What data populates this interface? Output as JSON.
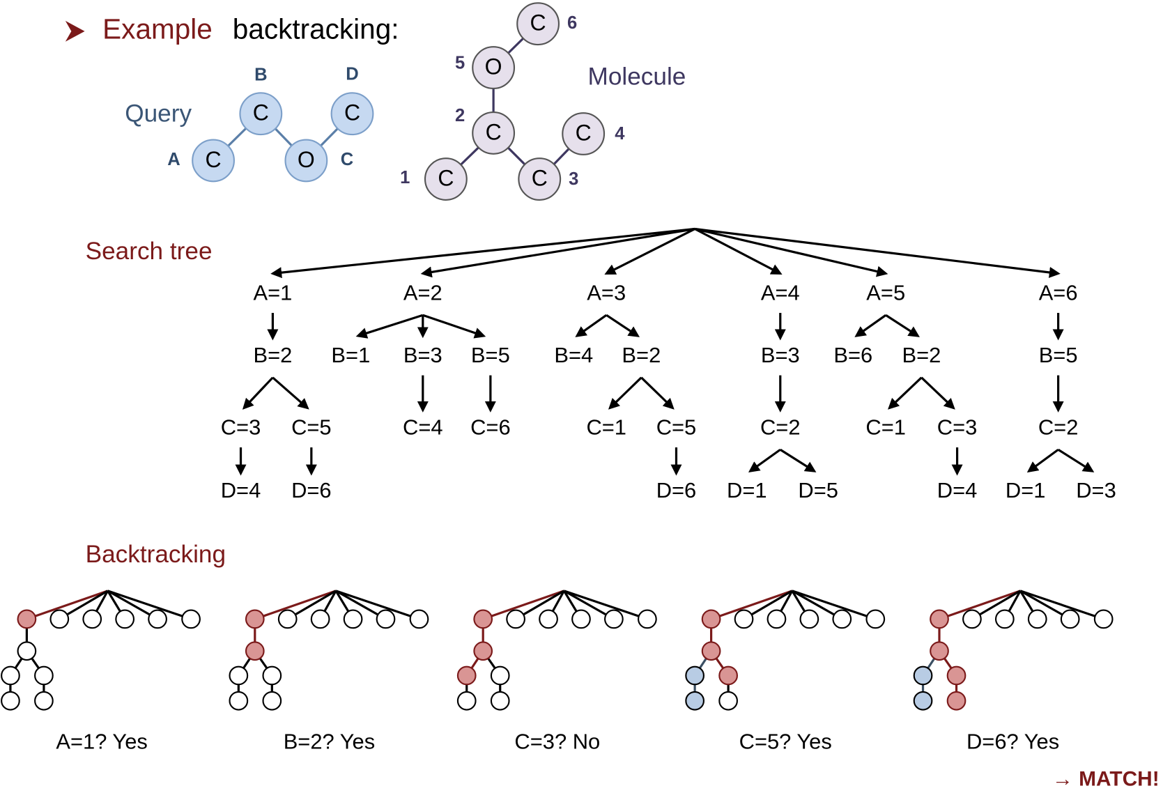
{
  "title": {
    "highlight": "Example",
    "rest": "backtracking:"
  },
  "query": {
    "label": "Query",
    "nodes": [
      {
        "id": "A",
        "atom": "C"
      },
      {
        "id": "B",
        "atom": "C"
      },
      {
        "id": "C",
        "atom": "O"
      },
      {
        "id": "D",
        "atom": "C"
      }
    ]
  },
  "molecule": {
    "label": "Molecule",
    "nodes": [
      {
        "id": "1",
        "atom": "C"
      },
      {
        "id": "2",
        "atom": "C"
      },
      {
        "id": "3",
        "atom": "C"
      },
      {
        "id": "4",
        "atom": "C"
      },
      {
        "id": "5",
        "atom": "O"
      },
      {
        "id": "6",
        "atom": "C"
      }
    ]
  },
  "search_tree": {
    "label": "Search tree",
    "levels": [
      [
        "A=1",
        "A=2",
        "A=3",
        "A=4",
        "A=5",
        "A=6"
      ],
      [
        "B=2",
        "B=1",
        "B=3",
        "B=5",
        "B=4",
        "B=2",
        "B=3",
        "B=6",
        "B=2",
        "B=5"
      ],
      [
        "C=3",
        "C=5",
        "C=4",
        "C=6",
        "C=1",
        "C=5",
        "C=2",
        "C=1",
        "C=3",
        "C=2"
      ],
      [
        "D=4",
        "D=6",
        "D=6",
        "D=1",
        "D=5",
        "D=4",
        "D=1",
        "D=3"
      ]
    ]
  },
  "backtracking": {
    "label": "Backtracking",
    "steps": [
      "A=1? Yes",
      "B=2? Yes",
      "C=3? No",
      "C=5? Yes",
      "D=6? Yes"
    ]
  },
  "result": "→ MATCH!"
}
